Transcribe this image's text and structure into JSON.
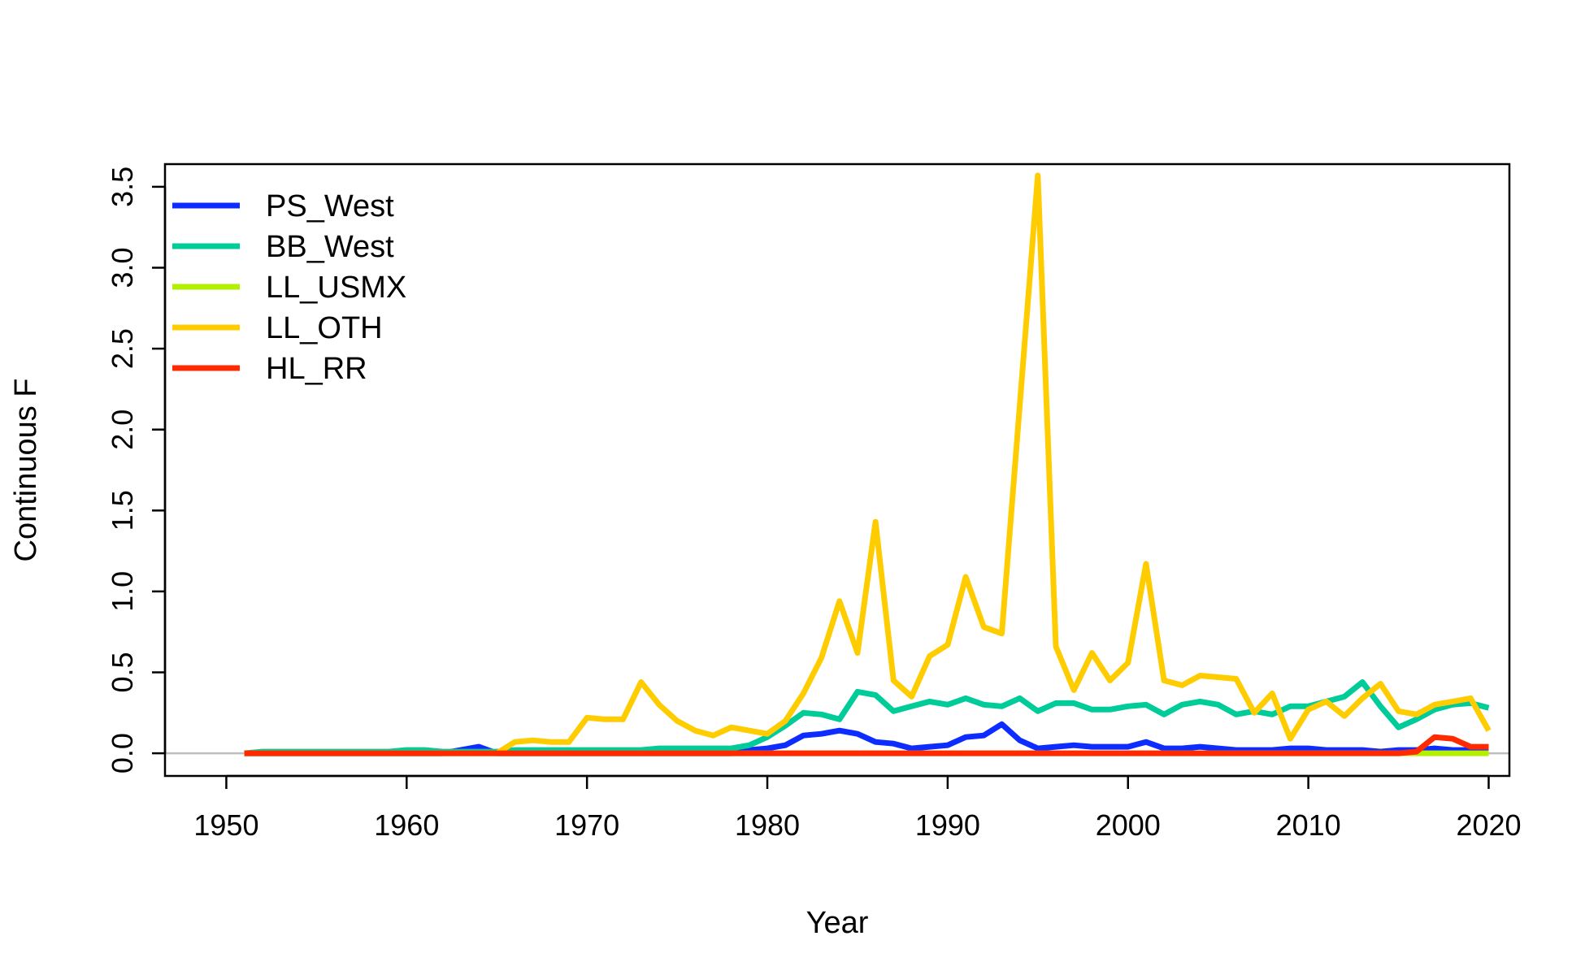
{
  "chart_data": {
    "type": "line",
    "title": "",
    "xlabel": "Year",
    "ylabel": "Continuous F",
    "xlim": [
      1951,
      2020
    ],
    "ylim": [
      0,
      3.5
    ],
    "x_ticks": [
      1950,
      1960,
      1970,
      1980,
      1990,
      2000,
      2010,
      2020
    ],
    "y_ticks": [
      0.0,
      0.5,
      1.0,
      1.5,
      2.0,
      2.5,
      3.0,
      3.5
    ],
    "y_tick_labels": [
      "0.0",
      "0.5",
      "1.0",
      "1.5",
      "2.0",
      "2.5",
      "3.0",
      "3.5"
    ],
    "grid": false,
    "reference_line": {
      "y": 0,
      "color": "#bebebe"
    },
    "legend_position": "top-left",
    "x": [
      1951,
      1952,
      1953,
      1954,
      1955,
      1956,
      1957,
      1958,
      1959,
      1960,
      1961,
      1962,
      1963,
      1964,
      1965,
      1966,
      1967,
      1968,
      1969,
      1970,
      1971,
      1972,
      1973,
      1974,
      1975,
      1976,
      1977,
      1978,
      1979,
      1980,
      1981,
      1982,
      1983,
      1984,
      1985,
      1986,
      1987,
      1988,
      1989,
      1990,
      1991,
      1992,
      1993,
      1994,
      1995,
      1996,
      1997,
      1998,
      1999,
      2000,
      2001,
      2002,
      2003,
      2004,
      2005,
      2006,
      2007,
      2008,
      2009,
      2010,
      2011,
      2012,
      2013,
      2014,
      2015,
      2016,
      2017,
      2018,
      2019,
      2020
    ],
    "series": [
      {
        "name": "PS_West",
        "color": "#0d2cff",
        "values": [
          0,
          0,
          0,
          0,
          0,
          0,
          0,
          0,
          0,
          0,
          0,
          0,
          0.02,
          0.04,
          0,
          0,
          0,
          0,
          0,
          0,
          0,
          0,
          0,
          0,
          0,
          0,
          0,
          0,
          0.02,
          0.03,
          0.05,
          0.11,
          0.12,
          0.14,
          0.12,
          0.07,
          0.06,
          0.03,
          0.04,
          0.05,
          0.1,
          0.11,
          0.18,
          0.08,
          0.03,
          0.04,
          0.05,
          0.04,
          0.04,
          0.04,
          0.07,
          0.03,
          0.03,
          0.04,
          0.03,
          0.02,
          0.02,
          0.02,
          0.03,
          0.03,
          0.02,
          0.02,
          0.02,
          0.01,
          0.02,
          0.02,
          0.03,
          0.02,
          0.02,
          0.02
        ]
      },
      {
        "name": "BB_West",
        "color": "#00cc99",
        "values": [
          0,
          0.01,
          0.01,
          0.01,
          0.01,
          0.01,
          0.01,
          0.01,
          0.01,
          0.02,
          0.02,
          0.01,
          0.01,
          0.01,
          0.01,
          0.02,
          0.02,
          0.02,
          0.02,
          0.02,
          0.02,
          0.02,
          0.02,
          0.03,
          0.03,
          0.03,
          0.03,
          0.03,
          0.05,
          0.1,
          0.17,
          0.25,
          0.24,
          0.21,
          0.38,
          0.36,
          0.26,
          0.29,
          0.32,
          0.3,
          0.34,
          0.3,
          0.29,
          0.34,
          0.26,
          0.31,
          0.31,
          0.27,
          0.27,
          0.29,
          0.3,
          0.24,
          0.3,
          0.32,
          0.3,
          0.24,
          0.26,
          0.24,
          0.29,
          0.29,
          0.32,
          0.35,
          0.44,
          0.29,
          0.16,
          0.21,
          0.27,
          0.3,
          0.31,
          0.28
        ]
      },
      {
        "name": "LL_USMX",
        "color": "#b3f000",
        "values": [
          0,
          0,
          0,
          0,
          0,
          0,
          0,
          0,
          0,
          0,
          0,
          0,
          0,
          0,
          0,
          0,
          0,
          0,
          0,
          0,
          0,
          0,
          0,
          0,
          0,
          0,
          0,
          0,
          0,
          0,
          0,
          0,
          0,
          0,
          0,
          0,
          0,
          0,
          0,
          0,
          0,
          0,
          0,
          0,
          0,
          0,
          0,
          0,
          0,
          0,
          0,
          0,
          0,
          0,
          0,
          0,
          0,
          0,
          0,
          0,
          0,
          0,
          0,
          0,
          0,
          0,
          0,
          0,
          0,
          0
        ]
      },
      {
        "name": "LL_OTH",
        "color": "#ffcc00",
        "values": [
          0,
          0,
          0,
          0,
          0,
          0,
          0,
          0,
          0,
          0,
          0,
          0,
          0,
          0,
          0,
          0.07,
          0.08,
          0.07,
          0.07,
          0.22,
          0.21,
          0.21,
          0.44,
          0.3,
          0.2,
          0.14,
          0.11,
          0.16,
          0.14,
          0.12,
          0.2,
          0.37,
          0.59,
          0.94,
          0.62,
          1.43,
          0.45,
          0.35,
          0.6,
          0.67,
          1.09,
          0.78,
          0.74,
          2.15,
          3.57,
          0.66,
          0.39,
          0.62,
          0.45,
          0.56,
          1.17,
          0.45,
          0.42,
          0.48,
          0.47,
          0.46,
          0.25,
          0.37,
          0.09,
          0.27,
          0.32,
          0.23,
          0.34,
          0.43,
          0.26,
          0.24,
          0.3,
          0.32,
          0.34,
          0.14
        ]
      },
      {
        "name": "HL_RR",
        "color": "#ff2a00",
        "values": [
          0,
          0,
          0,
          0,
          0,
          0,
          0,
          0,
          0,
          0,
          0,
          0,
          0,
          0,
          0,
          0,
          0,
          0,
          0,
          0,
          0,
          0,
          0,
          0,
          0,
          0,
          0,
          0,
          0,
          0,
          0,
          0,
          0,
          0,
          0,
          0,
          0,
          0,
          0,
          0,
          0,
          0,
          0,
          0,
          0,
          0,
          0,
          0,
          0,
          0,
          0,
          0,
          0,
          0,
          0,
          0,
          0,
          0,
          0,
          0,
          0,
          0,
          0,
          0,
          0,
          0.01,
          0.1,
          0.09,
          0.04,
          0.04
        ]
      }
    ]
  }
}
